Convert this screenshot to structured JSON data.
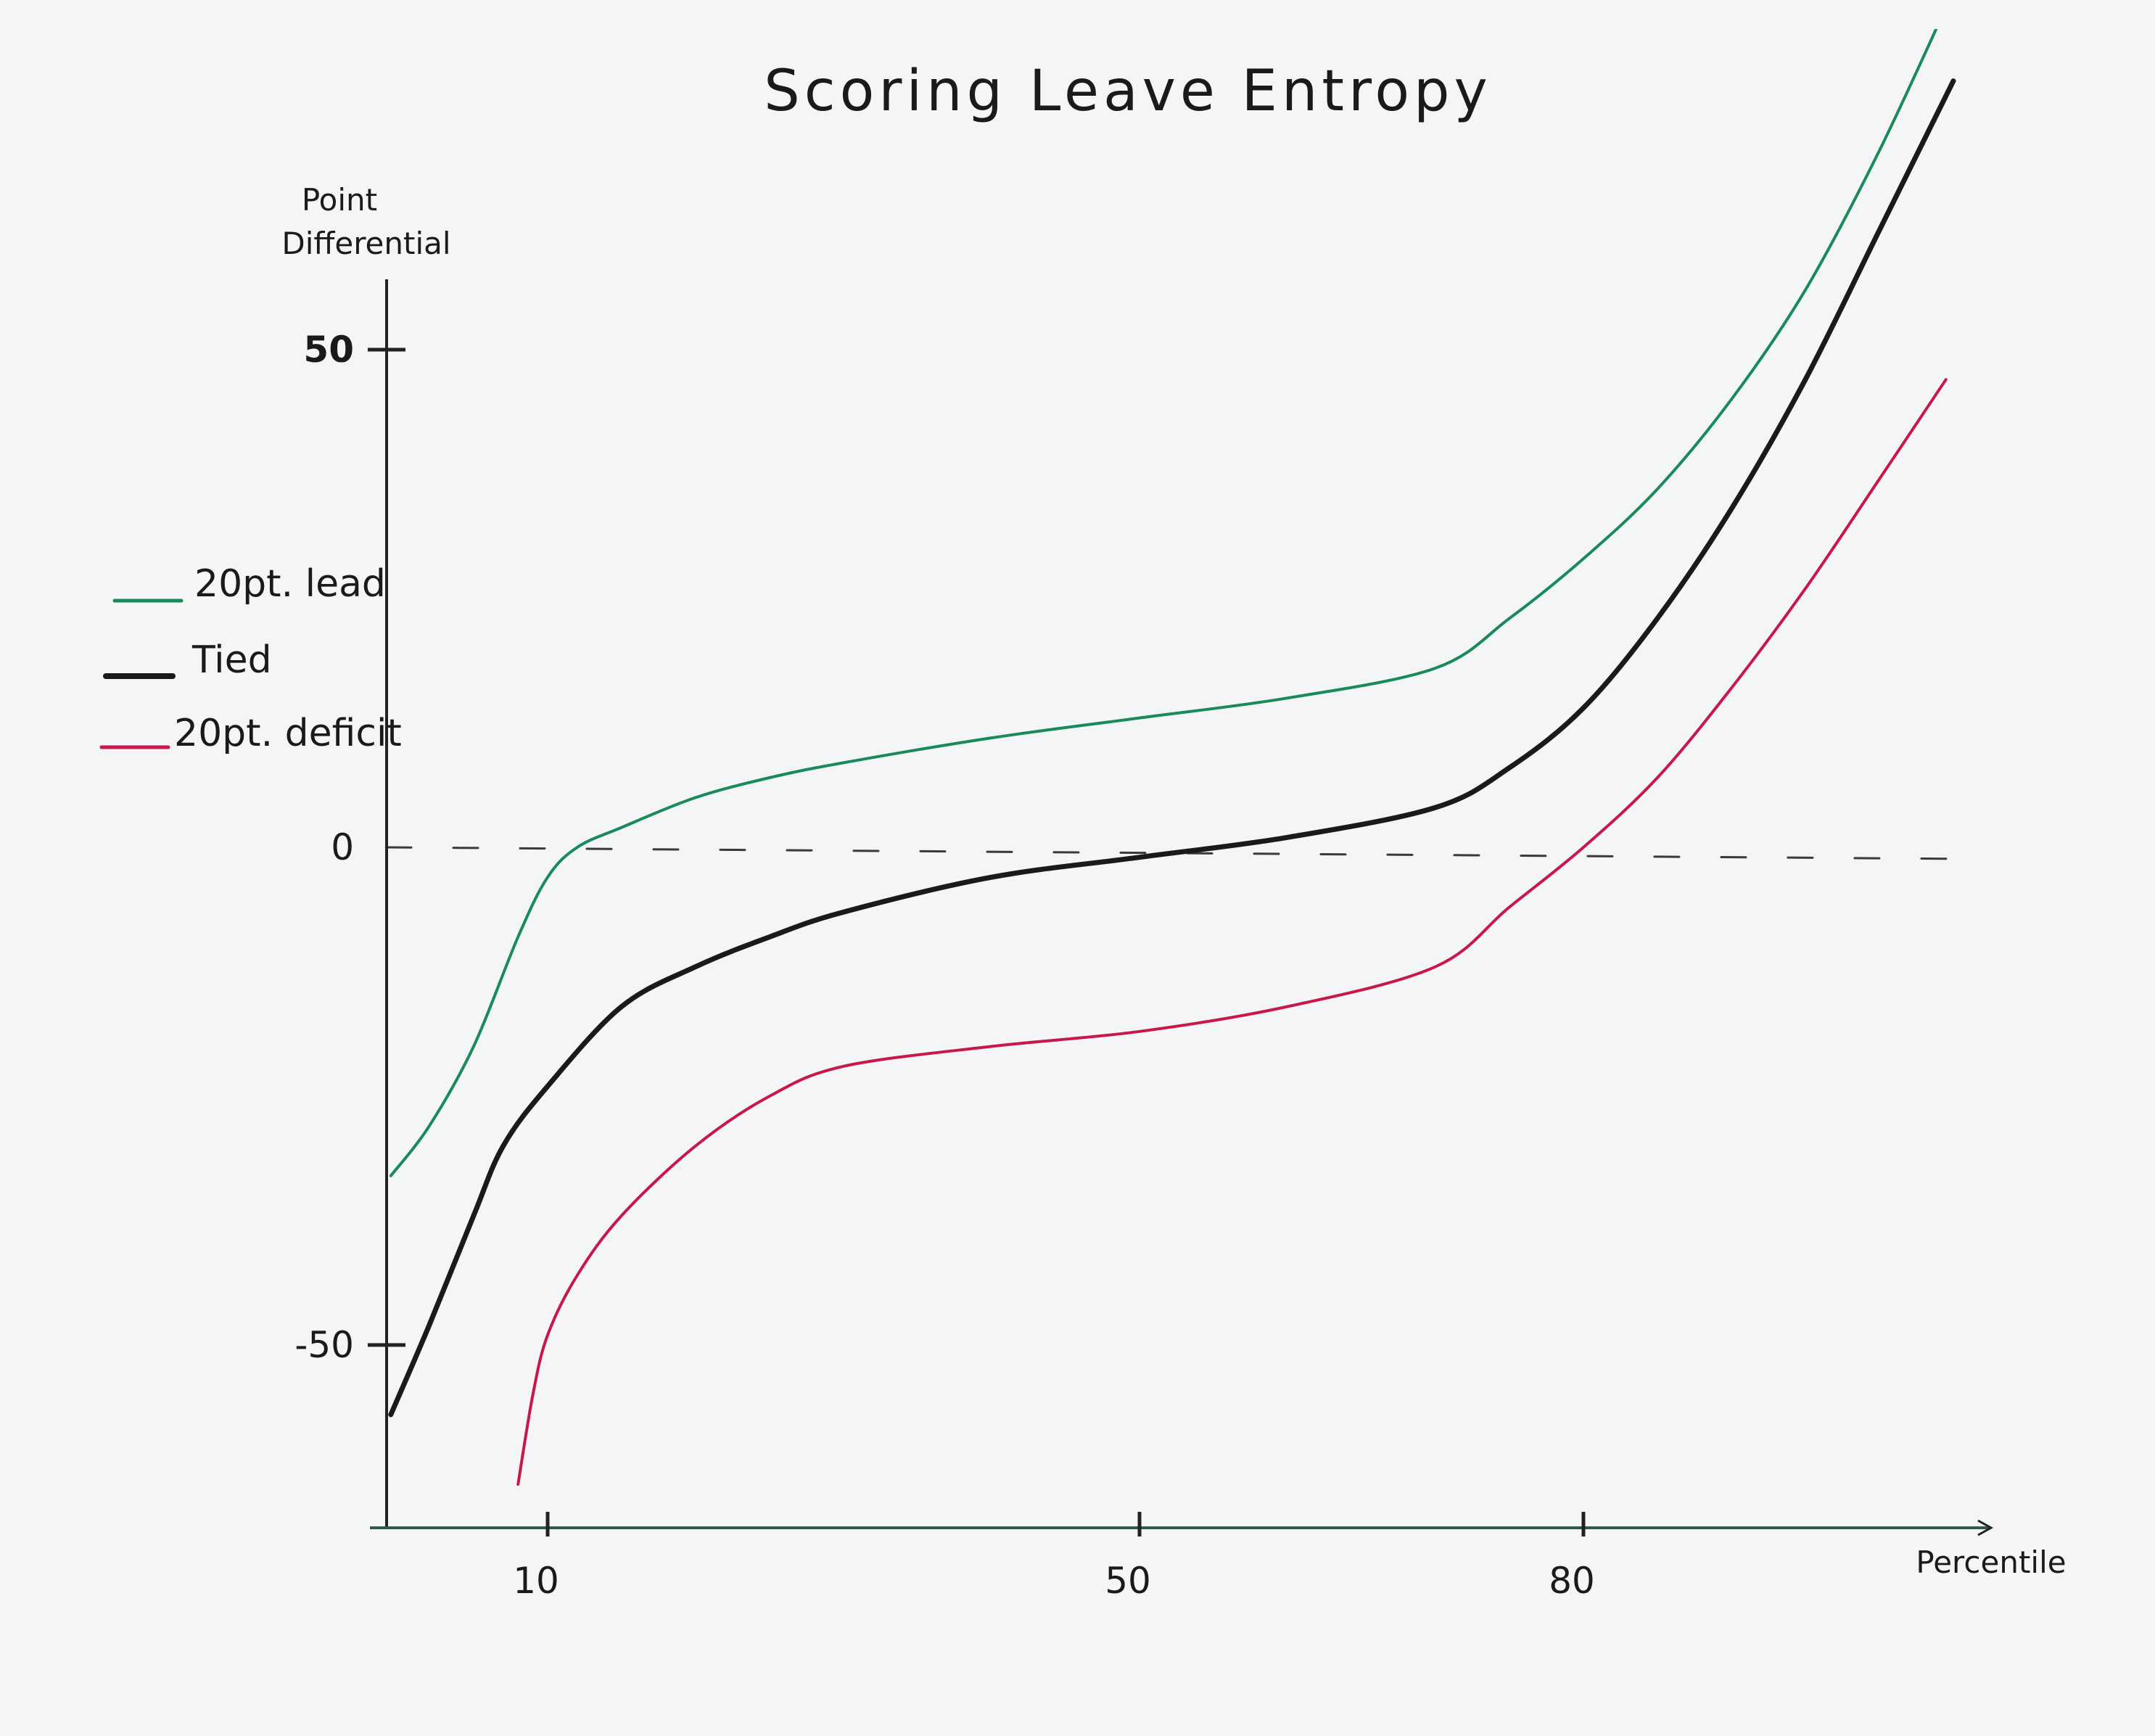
{
  "chart_data": {
    "type": "line",
    "title": "Scoring Leave Entropy",
    "ylabel_line1": "Point",
    "ylabel_line2": "Differential",
    "xlabel": "Percentile",
    "x_ticks": [
      {
        "value": 10,
        "label": "10"
      },
      {
        "value": 50,
        "label": "50"
      },
      {
        "value": 80,
        "label": "80"
      }
    ],
    "y_ticks": [
      {
        "value": 50,
        "label": "50"
      },
      {
        "value": 0,
        "label": "0"
      },
      {
        "value": -50,
        "label": "-50"
      }
    ],
    "xlim": [
      -2,
      109
    ],
    "ylim": [
      -65,
      57
    ],
    "reference_line": {
      "y": 0,
      "style": "dashed"
    },
    "legend_position": "left",
    "series": [
      {
        "name": "20pt. lead",
        "color": "#1a8a5a",
        "x": [
          -0.6,
          2,
          5,
          8,
          10,
          12,
          15,
          20,
          25,
          30,
          40,
          50,
          60,
          70,
          75,
          80,
          85,
          90,
          95,
          100,
          105
        ],
        "y": [
          -33,
          -28,
          -20,
          -9,
          -3,
          0,
          2,
          5,
          7,
          8.5,
          11,
          13,
          15,
          18,
          23,
          29,
          36,
          45,
          56,
          70,
          86
        ]
      },
      {
        "name": "Tied",
        "color": "#1a1a1a",
        "x": [
          -0.6,
          2,
          5,
          7,
          10,
          15,
          20,
          25,
          30,
          40,
          50,
          60,
          70,
          75,
          80,
          85,
          90,
          95,
          100,
          105
        ],
        "y": [
          -57,
          -48,
          -37,
          -30,
          -24,
          -16,
          -12,
          -9,
          -6.5,
          -3,
          -1,
          1,
          4,
          8,
          14,
          23,
          34,
          47,
          62,
          77
        ]
      },
      {
        "name": "20pt. deficit",
        "color": "#c8184a",
        "x": [
          8,
          9,
          10,
          12,
          15,
          20,
          25,
          30,
          40,
          50,
          60,
          70,
          75,
          80,
          85,
          90,
          95,
          100,
          104.5
        ],
        "y": [
          -64,
          -55,
          -49,
          -43,
          -37,
          -30,
          -25,
          -22,
          -20,
          -18.5,
          -16,
          -12,
          -6,
          0,
          7,
          16,
          26,
          37,
          47
        ]
      }
    ]
  }
}
